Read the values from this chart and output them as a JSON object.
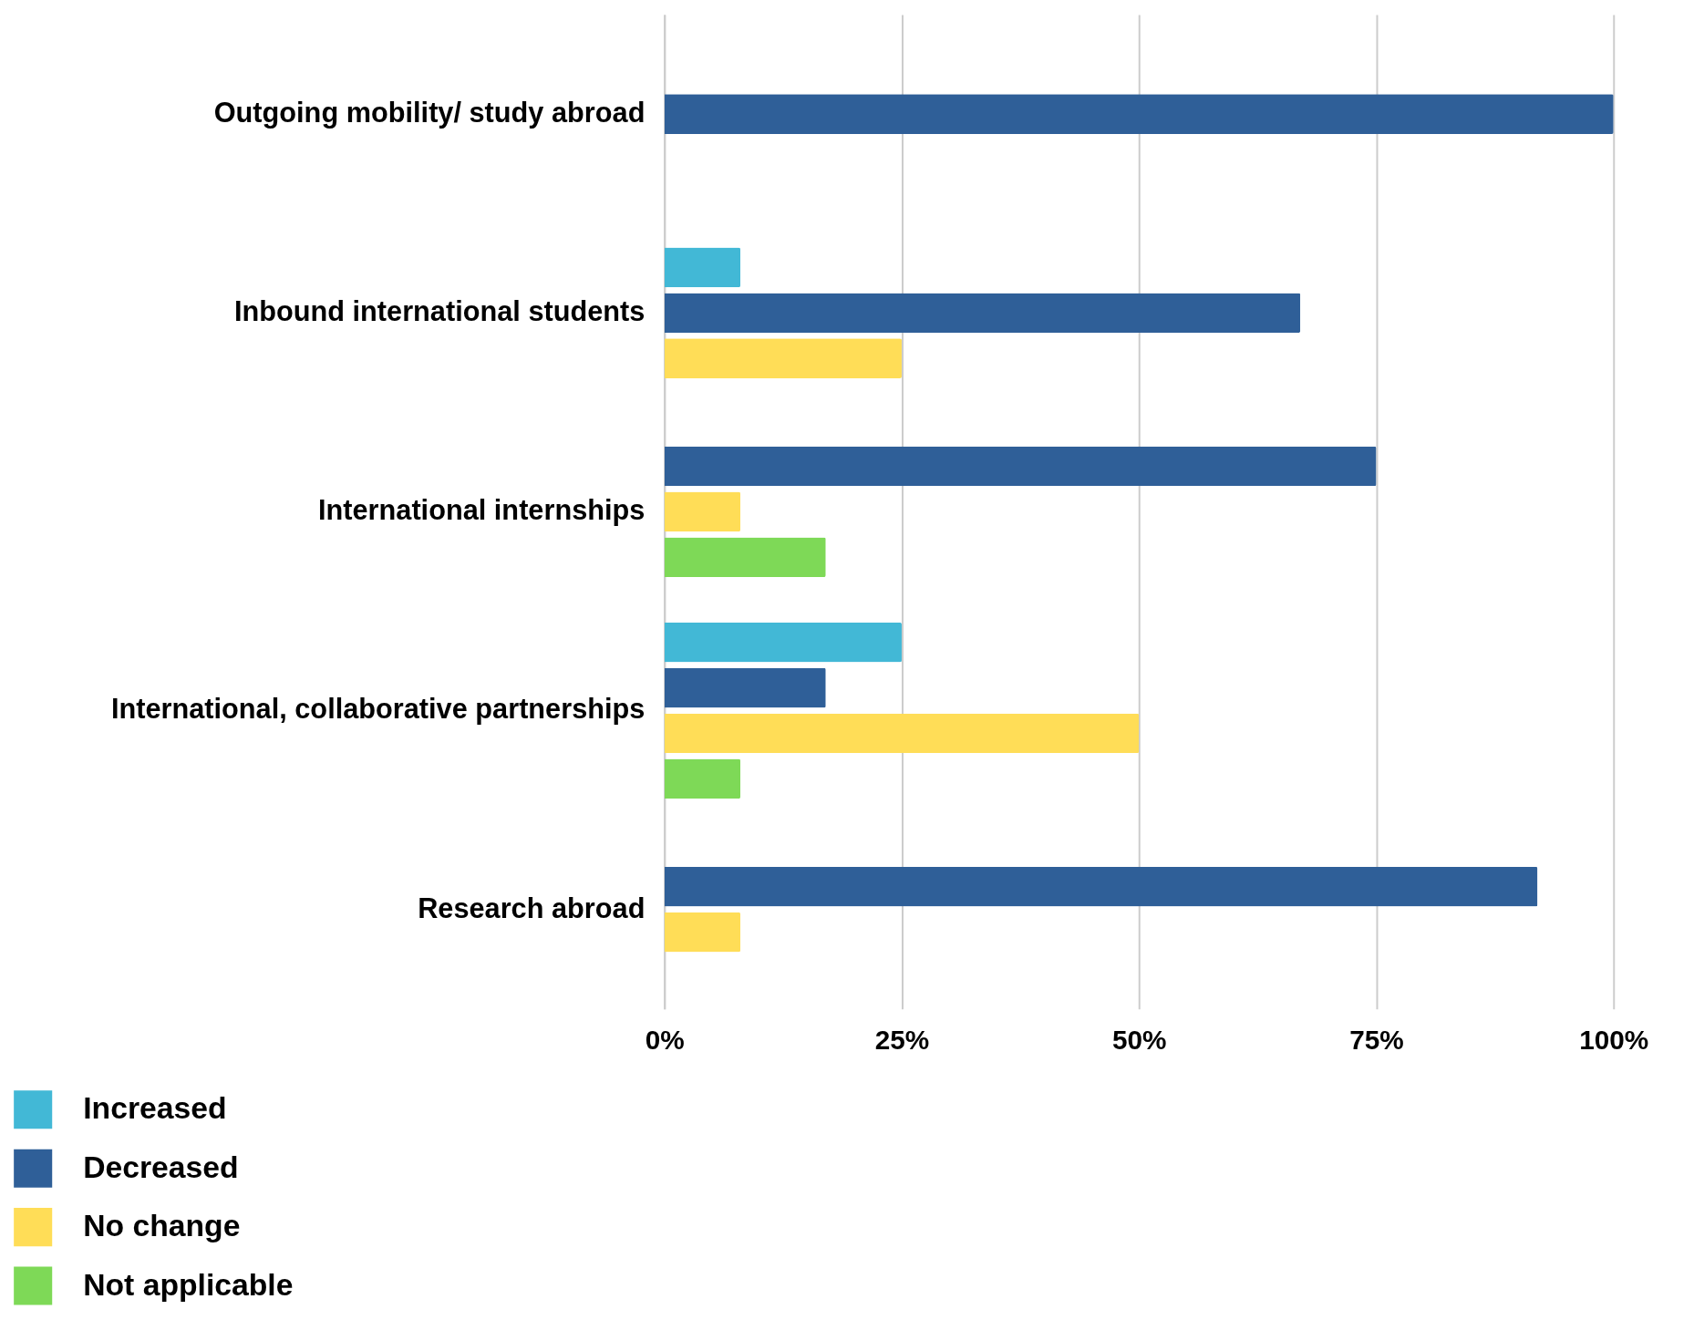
{
  "chart_data": {
    "type": "bar",
    "orientation": "horizontal",
    "categories": [
      "Outgoing mobility/ study abroad",
      "Inbound international students",
      "International internships",
      "International, collaborative partnerships",
      "Research abroad"
    ],
    "series": [
      {
        "name": "Increased",
        "color": "#42b8d6",
        "values": [
          null,
          8,
          null,
          25,
          null
        ]
      },
      {
        "name": "Decreased",
        "color": "#2f5f98",
        "values": [
          100,
          67,
          75,
          17,
          92
        ]
      },
      {
        "name": "No change",
        "color": "#ffdd57",
        "values": [
          null,
          25,
          8,
          50,
          8
        ]
      },
      {
        "name": "Not applicable",
        "color": "#7ed957",
        "values": [
          null,
          null,
          17,
          8,
          null
        ]
      }
    ],
    "xlim": [
      0,
      100
    ],
    "xticks": [
      {
        "value": 0,
        "label": "0%"
      },
      {
        "value": 25,
        "label": "25%"
      },
      {
        "value": 50,
        "label": "50%"
      },
      {
        "value": 75,
        "label": "75%"
      },
      {
        "value": 100,
        "label": "100%"
      }
    ],
    "grid": "x",
    "legend": "bottom left"
  }
}
